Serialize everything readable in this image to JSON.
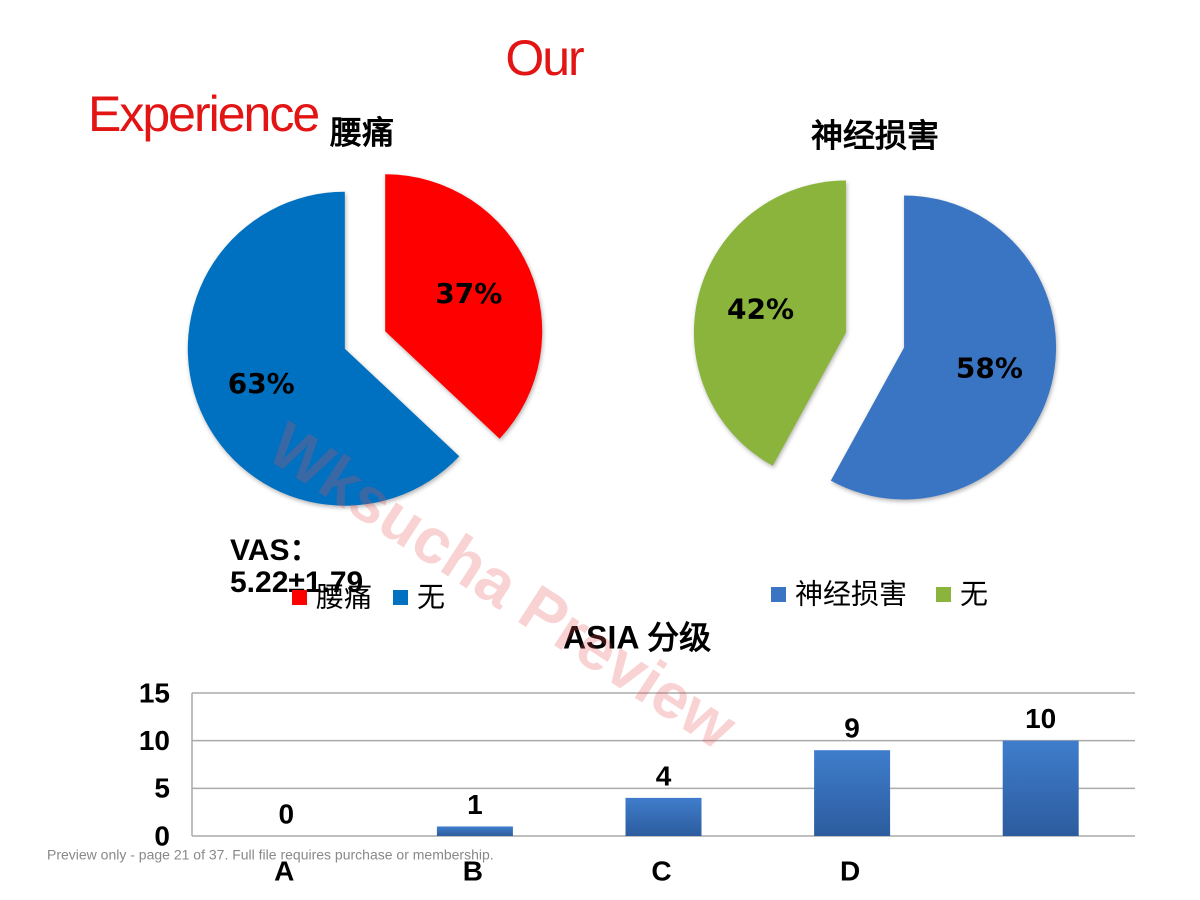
{
  "title": [
    "Our",
    "Experience"
  ],
  "annotation": [
    "VAS：",
    "5.22±1.79"
  ],
  "watermark": "Wksucha Preview",
  "footer": "Preview only - page 21 of 37. Full file requires purchase or membership.",
  "chart_data": [
    {
      "type": "pie",
      "title": "腰痛",
      "categories": [
        "腰痛",
        "无"
      ],
      "values": [
        37,
        63
      ],
      "value_labels": [
        "37%",
        "63%"
      ],
      "colors": [
        "#ff0000",
        "#0070c0"
      ]
    },
    {
      "type": "pie",
      "title": "神经损害",
      "categories": [
        "神经损害",
        "无"
      ],
      "values": [
        58,
        42
      ],
      "value_labels": [
        "58%",
        "42%"
      ],
      "colors": [
        "#3a75c4",
        "#8ab43c"
      ]
    },
    {
      "type": "bar",
      "title": "ASIA 分级",
      "categories": [
        "A",
        "B",
        "C",
        "D",
        null
      ],
      "values": [
        0,
        1,
        4,
        9,
        10
      ],
      "color": "#3a75c4",
      "ylim": [
        0,
        15
      ],
      "yticks": [
        0,
        5,
        10,
        15
      ],
      "grid": true
    }
  ]
}
